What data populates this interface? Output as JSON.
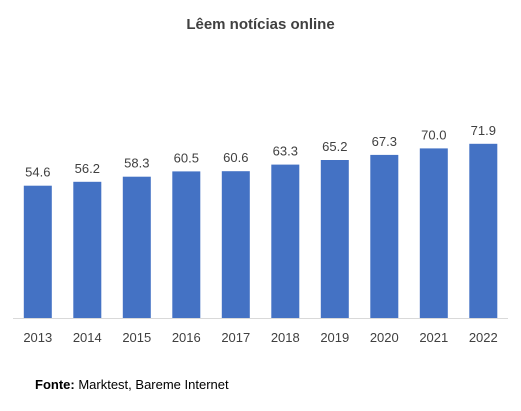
{
  "chart_data": {
    "type": "bar",
    "title": "Lêem notícias online",
    "xlabel": "",
    "ylabel": "",
    "categories": [
      "2013",
      "2014",
      "2015",
      "2016",
      "2017",
      "2018",
      "2019",
      "2020",
      "2021",
      "2022"
    ],
    "values": [
      54.6,
      56.2,
      58.3,
      60.5,
      60.6,
      63.3,
      65.2,
      67.3,
      70.0,
      71.9
    ],
    "value_labels": [
      "54.6",
      "56.2",
      "58.3",
      "60.5",
      "60.6",
      "63.3",
      "65.2",
      "67.3",
      "70.0",
      "71.9"
    ],
    "ylim": [
      0,
      75
    ],
    "grid": false,
    "legend": "none",
    "bar_color": "#4472c4"
  },
  "source": {
    "label": "Fonte:",
    "text": " Marktest, Bareme Internet"
  },
  "colors": {
    "axis": "#d9d9d9",
    "text": "#404040"
  }
}
